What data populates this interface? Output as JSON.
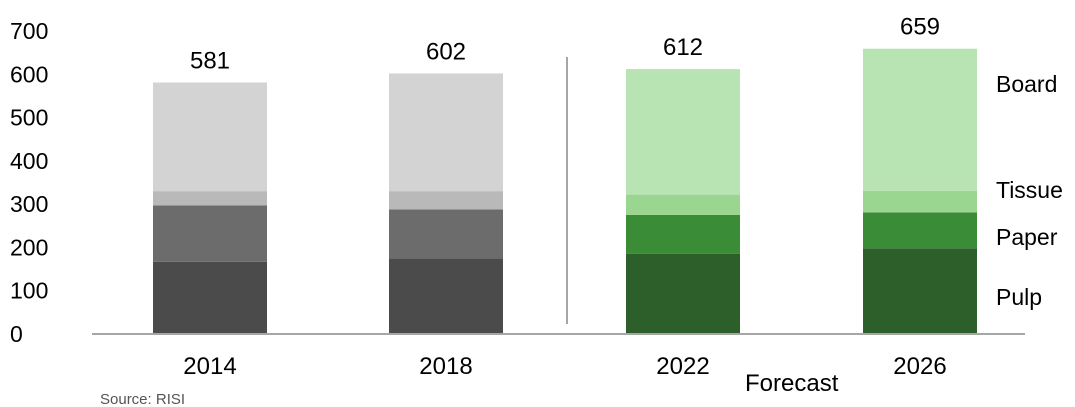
{
  "chart_data": {
    "type": "bar",
    "stacked": true,
    "categories": [
      "2014",
      "2018",
      "2022",
      "2026"
    ],
    "totals": [
      581,
      602,
      612,
      659
    ],
    "series": [
      {
        "name": "Pulp",
        "values": [
          167,
          175,
          185,
          198
        ],
        "colors": [
          "#4b4b4b",
          "#4b4b4b",
          "#2c5f2a",
          "#2c5f2a"
        ]
      },
      {
        "name": "Paper",
        "values": [
          130,
          113,
          90,
          83
        ],
        "colors": [
          "#6c6c6c",
          "#6c6c6c",
          "#3b8c37",
          "#3b8c37"
        ]
      },
      {
        "name": "Tissue",
        "values": [
          33,
          42,
          47,
          50
        ],
        "colors": [
          "#b9b9b9",
          "#b9b9b9",
          "#9ad690",
          "#9ad690"
        ]
      },
      {
        "name": "Board",
        "values": [
          251,
          272,
          290,
          328
        ],
        "colors": [
          "#d3d3d3",
          "#d3d3d3",
          "#b8e3b3",
          "#b8e3b3"
        ]
      }
    ],
    "ylim": [
      0,
      700
    ],
    "yticks": [
      0,
      100,
      200,
      300,
      400,
      500,
      600,
      700
    ],
    "grid": false,
    "legend": "inline-right",
    "annotations": {
      "forecast": "Forecast",
      "source": "Source: RISI"
    }
  }
}
